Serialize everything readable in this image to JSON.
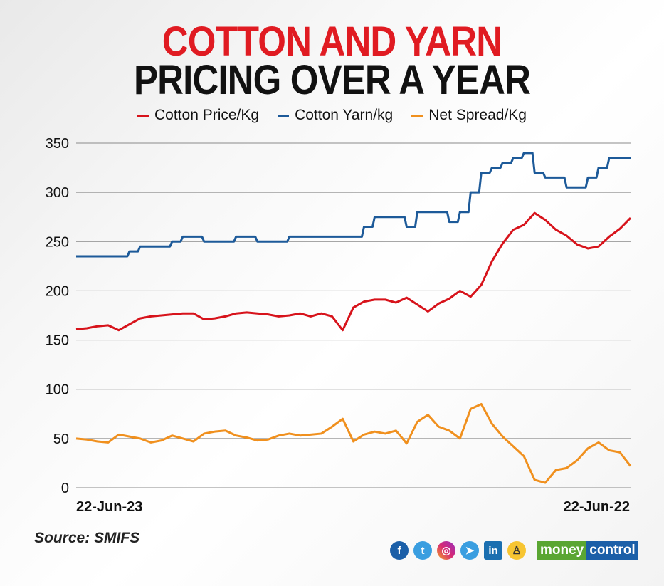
{
  "title_line1": "COTTON AND YARN",
  "title_line2": "PRICING OVER A YEAR",
  "source": "Source: SMIFS",
  "social_icons": [
    "facebook-icon",
    "twitter-icon",
    "instagram-icon",
    "telegram-icon",
    "linkedin-icon",
    "koo-icon"
  ],
  "brand": {
    "part1": "money",
    "part2": "control"
  },
  "colors": {
    "title_red": "#e01b22",
    "cotton": "#d7131b",
    "yarn": "#1d5a99",
    "spread": "#f0901e"
  },
  "chart_data": {
    "type": "line",
    "title": "COTTON AND YARN PRICING OVER A YEAR",
    "x_start_label": "22-Jun-23",
    "x_end_label": "22-Jun-22",
    "ylim": [
      0,
      350
    ],
    "yticks": [
      0,
      50,
      100,
      150,
      200,
      250,
      300,
      350
    ],
    "grid": true,
    "legend_position": "top",
    "series": [
      {
        "name": "Cotton Price/Kg",
        "color": "#d7131b",
        "values": [
          161,
          162,
          164,
          165,
          160,
          166,
          172,
          174,
          175,
          176,
          177,
          177,
          171,
          172,
          174,
          177,
          178,
          177,
          176,
          174,
          175,
          177,
          174,
          177,
          174,
          160,
          183,
          189,
          191,
          191,
          188,
          193,
          186,
          179,
          187,
          192,
          200,
          194,
          206,
          230,
          248,
          262,
          267,
          279,
          272,
          262,
          256,
          247,
          243,
          245,
          255,
          263,
          274
        ]
      },
      {
        "name": "Cotton Yarn/kg",
        "color": "#1d5a99",
        "step": true,
        "values": [
          235,
          235,
          235,
          235,
          235,
          240,
          245,
          245,
          245,
          250,
          255,
          255,
          250,
          250,
          250,
          255,
          255,
          250,
          250,
          250,
          255,
          255,
          255,
          255,
          255,
          255,
          255,
          265,
          275,
          275,
          275,
          265,
          280,
          280,
          280,
          270,
          280,
          300,
          320,
          325,
          330,
          335,
          340,
          320,
          315,
          315,
          305,
          305,
          315,
          325,
          335,
          335,
          335
        ]
      },
      {
        "name": "Net Spread/Kg",
        "color": "#f0901e",
        "values": [
          50,
          49,
          47,
          46,
          54,
          52,
          50,
          46,
          48,
          53,
          50,
          47,
          55,
          57,
          58,
          53,
          51,
          48,
          49,
          53,
          55,
          53,
          54,
          55,
          62,
          70,
          47,
          54,
          57,
          55,
          58,
          45,
          67,
          74,
          62,
          58,
          50,
          80,
          85,
          65,
          52,
          42,
          32,
          8,
          5,
          18,
          20,
          28,
          40,
          46,
          38,
          36,
          22
        ]
      }
    ]
  }
}
